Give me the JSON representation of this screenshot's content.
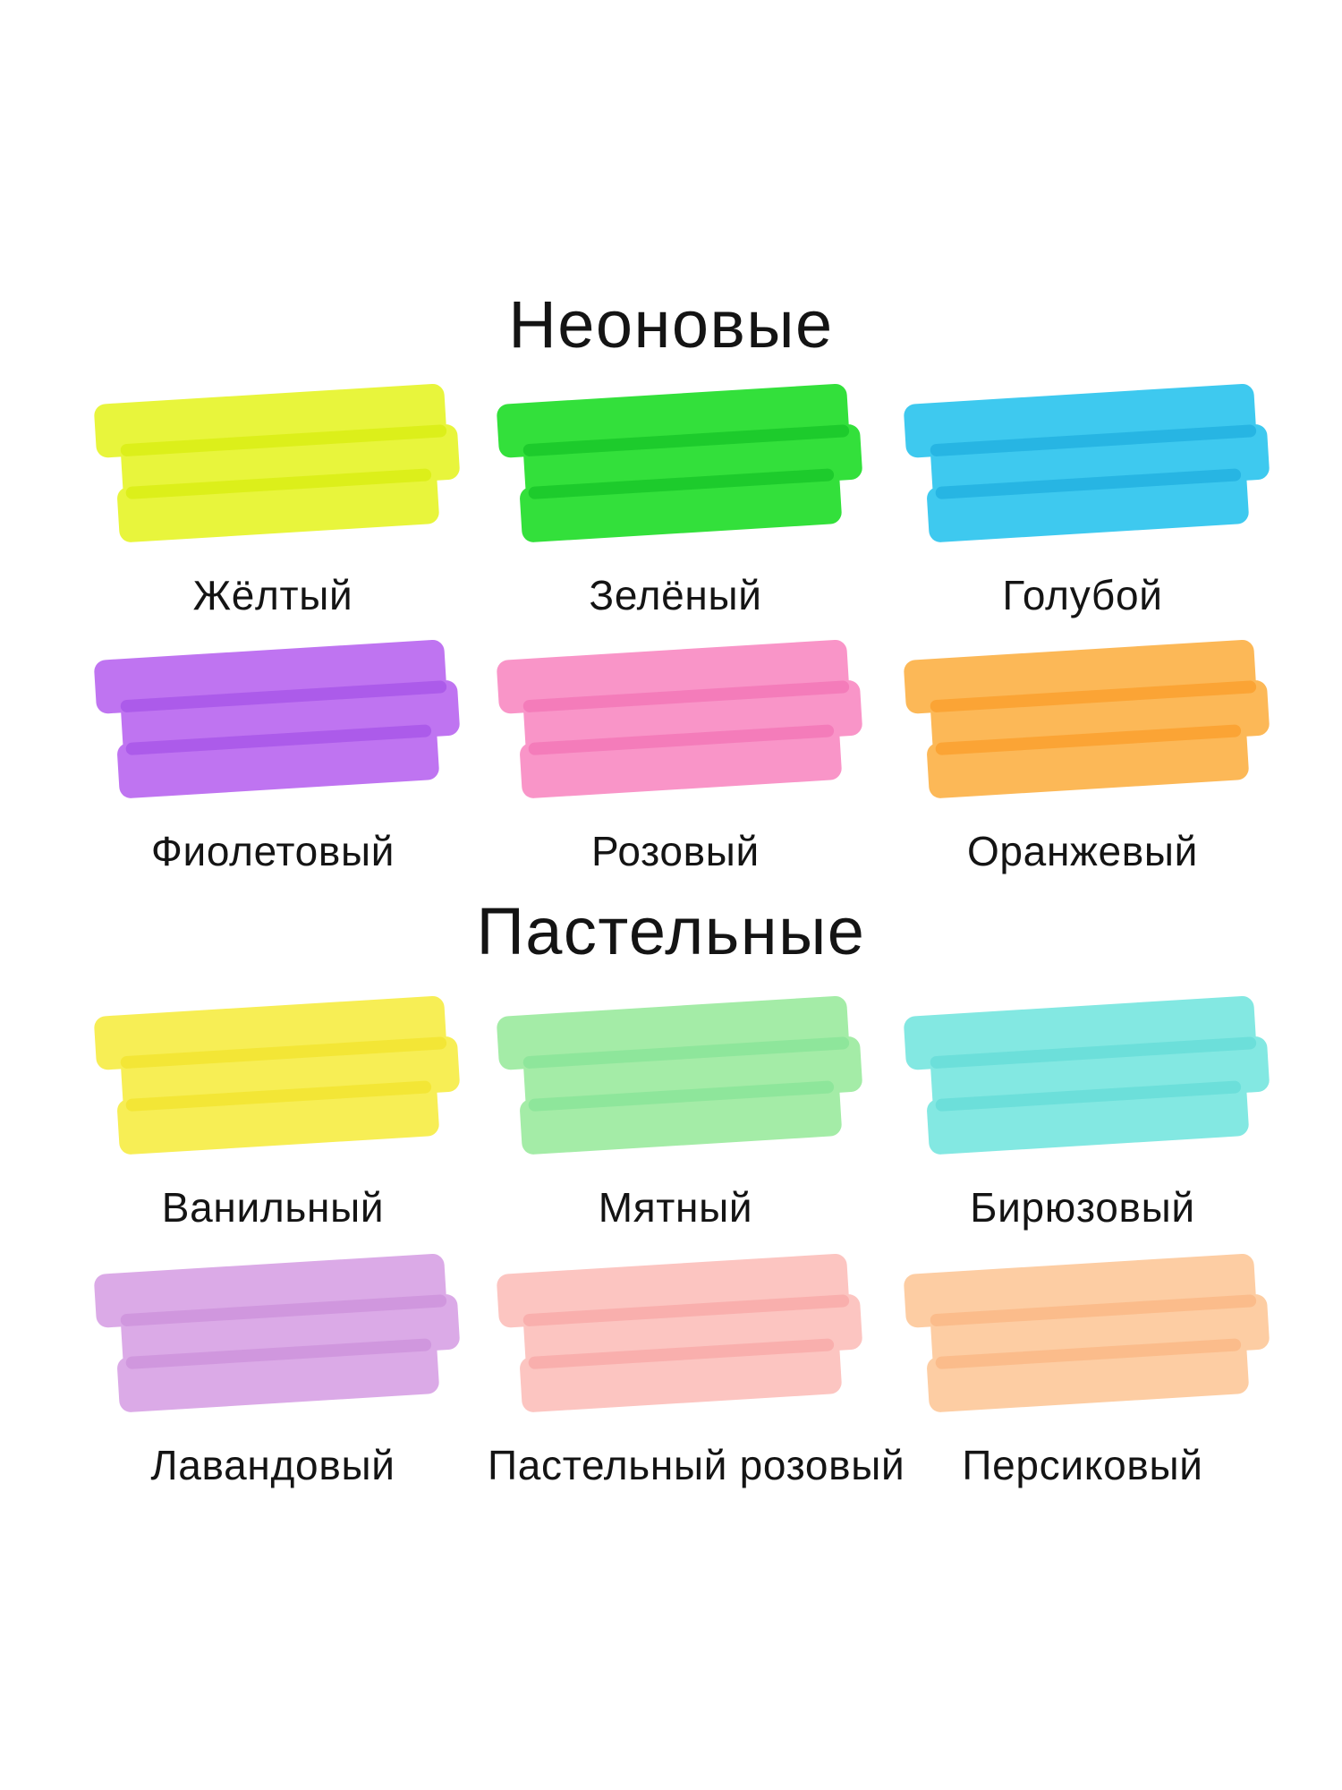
{
  "page": {
    "background": "#ffffff",
    "text_color": "#141414",
    "language": "ru",
    "content_kind": "highlighter color palette"
  },
  "sections": [
    {
      "title": "Неоновые",
      "swatches": [
        {
          "label": "Жёлтый",
          "color": "#E8F53C",
          "overlap": "#DCEF1A"
        },
        {
          "label": "Зелёный",
          "color": "#33E03B",
          "overlap": "#1DCB2C"
        },
        {
          "label": "Голубой",
          "color": "#3EC9EF",
          "overlap": "#27B5E3"
        },
        {
          "label": "Фиолетовый",
          "color": "#BF74F1",
          "overlap": "#AC5BEA"
        },
        {
          "label": "Розовый",
          "color": "#F995C8",
          "overlap": "#F47CBA"
        },
        {
          "label": "Оранжевый",
          "color": "#FCB857",
          "overlap": "#FBA435"
        }
      ]
    },
    {
      "title": "Пастельные",
      "swatches": [
        {
          "label": "Ванильный",
          "color": "#F7EE55",
          "overlap": "#F3E636"
        },
        {
          "label": "Мятный",
          "color": "#A4ECA7",
          "overlap": "#8EE69B"
        },
        {
          "label": "Бирюзовый",
          "color": "#83E8E2",
          "overlap": "#6CDFDA"
        },
        {
          "label": "Лавандовый",
          "color": "#DBAAE7",
          "overlap": "#D097DE"
        },
        {
          "label": "Пастельный розовый",
          "color": "#FCC5C1",
          "overlap": "#F9AFAD"
        },
        {
          "label": "Персиковый",
          "color": "#FDCDA3",
          "overlap": "#FBBC8B"
        }
      ]
    }
  ]
}
